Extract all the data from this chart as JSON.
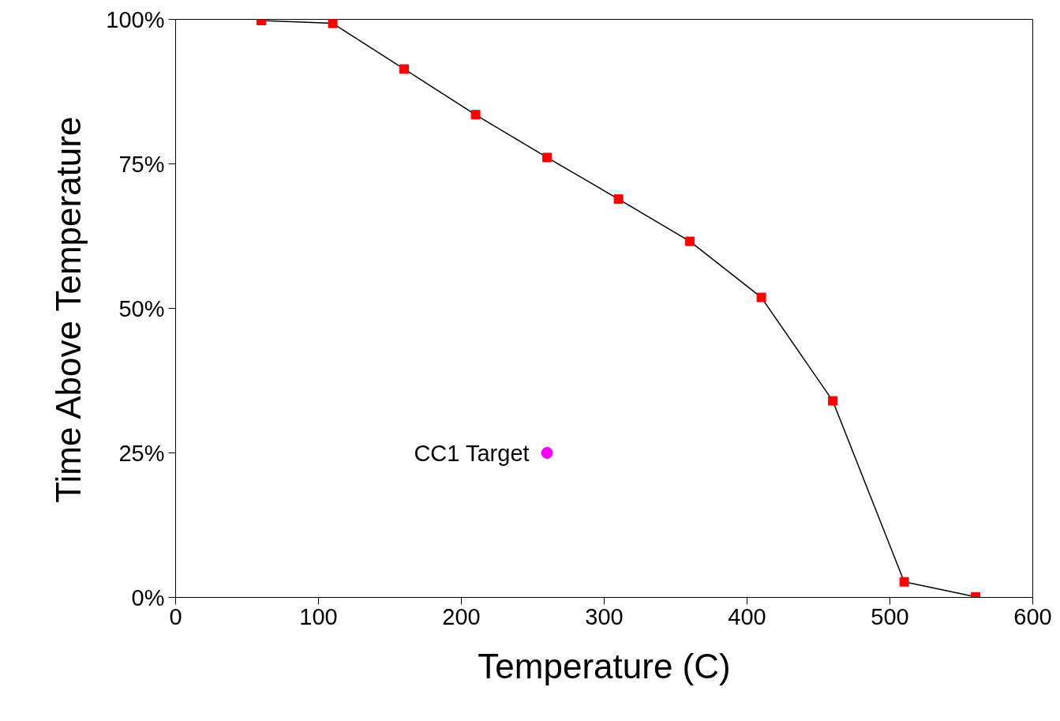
{
  "chart_data": {
    "type": "line",
    "xlabel": "Temperature (C)",
    "ylabel": "Time Above Temperature",
    "xlim": [
      0,
      600
    ],
    "xticks": [
      0,
      100,
      200,
      300,
      400,
      500,
      600
    ],
    "ylim": [
      0,
      100
    ],
    "yticks": [
      {
        "value": 0,
        "label": "0%"
      },
      {
        "value": 25,
        "label": "25%"
      },
      {
        "value": 50,
        "label": "50%"
      },
      {
        "value": 75,
        "label": "75%"
      },
      {
        "value": 100,
        "label": "100%"
      }
    ],
    "grid": false,
    "marker": "square",
    "line_style": "solid",
    "series": [
      {
        "color": "#ff0000",
        "x": [
          60,
          110,
          160,
          210,
          260,
          310,
          360,
          410,
          460,
          510,
          560
        ],
        "values": [
          99.8,
          99.3,
          91.4,
          83.5,
          76.1,
          68.9,
          61.6,
          51.9,
          34.0,
          2.7,
          0.1
        ]
      },
      {
        "type": "scatter",
        "name": "CC1 Target",
        "color": "#ff00ff",
        "marker": "circle",
        "x": [
          260
        ],
        "values": [
          25
        ]
      }
    ]
  }
}
